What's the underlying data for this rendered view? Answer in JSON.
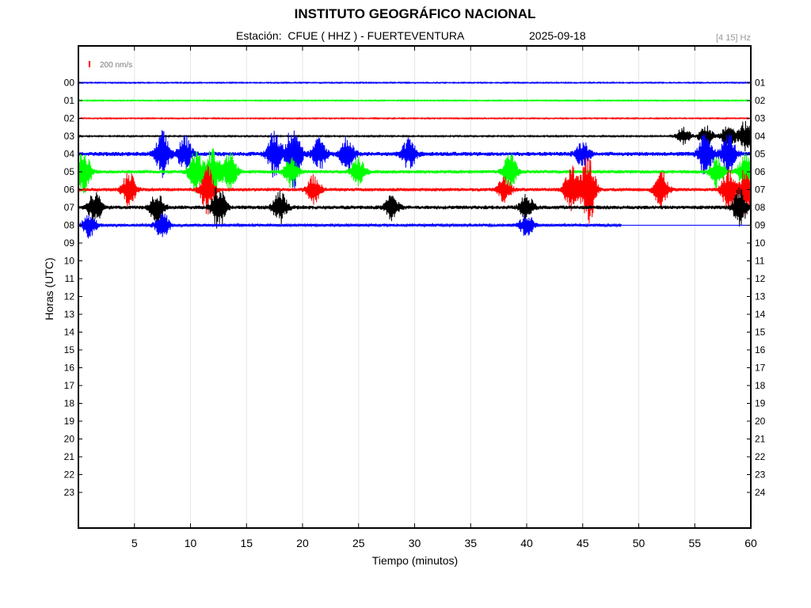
{
  "header": {
    "title": "INSTITUTO GEOGRÁFICO NACIONAL",
    "station_label": "Estación:  CFUE ( HHZ ) - FUERTEVENTURA",
    "date": "2025-09-18",
    "filter_label": "[4 15] Hz"
  },
  "chart_data": {
    "type": "line",
    "xlabel": "Tiempo (minutos)",
    "ylabel": "Horas (UTC)",
    "xlim": [
      0,
      60
    ],
    "x_ticks": [
      5,
      10,
      15,
      20,
      25,
      30,
      35,
      40,
      45,
      50,
      55,
      60
    ],
    "y_ticks_left": [
      "00",
      "01",
      "02",
      "03",
      "04",
      "05",
      "06",
      "07",
      "08",
      "09",
      "10",
      "11",
      "12",
      "13",
      "14",
      "15",
      "16",
      "17",
      "18",
      "19",
      "20",
      "21",
      "22",
      "23"
    ],
    "y_ticks_right": [
      "01",
      "02",
      "03",
      "04",
      "05",
      "06",
      "07",
      "08",
      "09",
      "10",
      "11",
      "12",
      "13",
      "14",
      "15",
      "16",
      "17",
      "18",
      "19",
      "20",
      "21",
      "22",
      "23",
      "24"
    ],
    "grid": true,
    "scale_bar": {
      "label": "200 nm/s",
      "color": "#ff0000"
    },
    "trace_colors": [
      "#0000ff",
      "#00ff00",
      "#ff0000",
      "#000000"
    ],
    "traces": [
      {
        "hour": "00",
        "color": "#0000ff",
        "end_minute": 60,
        "noise_level": 0.25,
        "bursts": []
      },
      {
        "hour": "01",
        "color": "#00ff00",
        "end_minute": 60,
        "noise_level": 0.25,
        "bursts": []
      },
      {
        "hour": "02",
        "color": "#ff0000",
        "end_minute": 60,
        "noise_level": 0.25,
        "bursts": []
      },
      {
        "hour": "03",
        "color": "#000000",
        "end_minute": 60,
        "noise_level": 0.3,
        "bursts": [
          [
            54,
            1.2
          ],
          [
            56,
            1.5
          ],
          [
            58,
            1.6
          ],
          [
            59.5,
            2.0
          ]
        ]
      },
      {
        "hour": "04",
        "color": "#0000ff",
        "end_minute": 60,
        "noise_level": 0.9,
        "bursts": [
          [
            7.5,
            2.8
          ],
          [
            9.5,
            2.2
          ],
          [
            17.5,
            3.2
          ],
          [
            19.2,
            4.5
          ],
          [
            21.5,
            2.0
          ],
          [
            24,
            2.2
          ],
          [
            29.5,
            2.0
          ],
          [
            45,
            1.6
          ],
          [
            56,
            3.0
          ],
          [
            58,
            2.8
          ]
        ]
      },
      {
        "hour": "05",
        "color": "#00ff00",
        "end_minute": 60,
        "noise_level": 0.7,
        "bursts": [
          [
            0.5,
            2.8
          ],
          [
            10.5,
            3.0
          ],
          [
            12,
            3.2
          ],
          [
            13.5,
            2.8
          ],
          [
            19,
            2.0
          ],
          [
            25,
            1.8
          ],
          [
            38.5,
            2.4
          ],
          [
            57,
            2.0
          ],
          [
            59.5,
            2.4
          ]
        ]
      },
      {
        "hour": "06",
        "color": "#ff0000",
        "end_minute": 60,
        "noise_level": 0.7,
        "bursts": [
          [
            4.5,
            2.2
          ],
          [
            11.5,
            3.0
          ],
          [
            21,
            1.8
          ],
          [
            38,
            1.6
          ],
          [
            44,
            3.0
          ],
          [
            45.5,
            5.0
          ],
          [
            52,
            2.4
          ],
          [
            58,
            2.6
          ],
          [
            59.6,
            3.2
          ]
        ]
      },
      {
        "hour": "07",
        "color": "#000000",
        "end_minute": 60,
        "noise_level": 0.8,
        "bursts": [
          [
            1.5,
            2.0
          ],
          [
            7,
            2.0
          ],
          [
            12.5,
            3.0
          ],
          [
            18,
            2.0
          ],
          [
            28,
            1.6
          ],
          [
            40,
            1.6
          ],
          [
            59,
            2.4
          ]
        ]
      },
      {
        "hour": "08",
        "color": "#0000ff",
        "end_minute": 48.5,
        "noise_level": 0.6,
        "bursts": [
          [
            1,
            1.6
          ],
          [
            7.5,
            1.8
          ],
          [
            40,
            1.5
          ]
        ]
      }
    ]
  }
}
